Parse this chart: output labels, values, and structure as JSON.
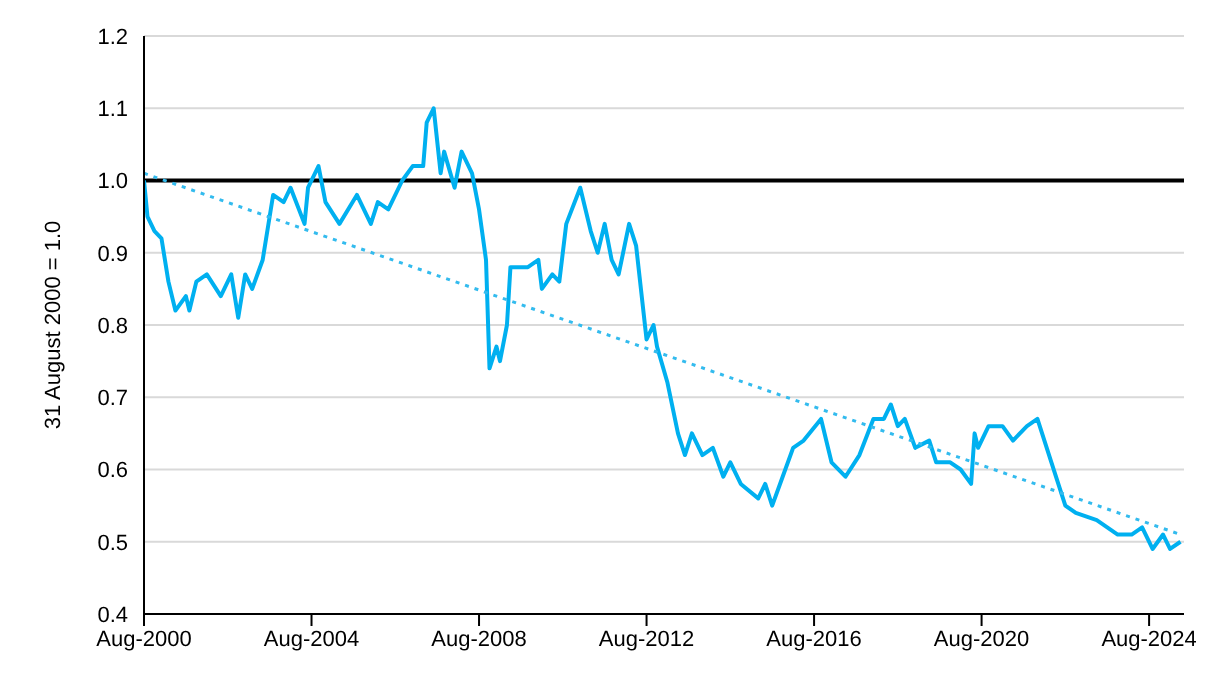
{
  "chart_data": {
    "type": "line",
    "ylabel": "31 August 2000 = 1.0",
    "xlim": [
      "2000-08",
      "2025-06"
    ],
    "xticks": [
      {
        "value": "2000-08",
        "label": "Aug-2000"
      },
      {
        "value": "2004-08",
        "label": "Aug-2004"
      },
      {
        "value": "2008-08",
        "label": "Aug-2008"
      },
      {
        "value": "2012-08",
        "label": "Aug-2012"
      },
      {
        "value": "2016-08",
        "label": "Aug-2016"
      },
      {
        "value": "2020-08",
        "label": "Aug-2020"
      },
      {
        "value": "2024-08",
        "label": "Aug-2024"
      }
    ],
    "ylim": [
      0.4,
      1.2
    ],
    "yticks": [
      0.4,
      0.5,
      0.6,
      0.7,
      0.8,
      0.9,
      {
        "value": 1,
        "label": "1.0"
      },
      1.1,
      1.2
    ],
    "grid": "y",
    "marker": "none",
    "ref_lines": [
      {
        "axis": "y",
        "value": 1,
        "color": "#000000"
      }
    ],
    "series": [
      {
        "color": "#00b0f0",
        "line_style": "solid",
        "x": [
          "2000-08",
          "2000-09",
          "2000-11",
          "2001-01",
          "2001-03",
          "2001-05",
          "2001-08",
          "2001-09",
          "2001-11",
          "2002-02",
          "2002-06",
          "2002-09",
          "2002-11",
          "2003-01",
          "2003-03",
          "2003-06",
          "2003-09",
          "2003-12",
          "2004-02",
          "2004-06",
          "2004-07",
          "2004-10",
          "2004-12",
          "2005-04",
          "2005-09",
          "2006-01",
          "2006-03",
          "2006-06",
          "2006-10",
          "2007-01",
          "2007-04",
          "2007-05",
          "2007-07",
          "2007-09",
          "2007-10",
          "2008-01",
          "2008-03",
          "2008-04",
          "2008-06",
          "2008-08",
          "2008-10",
          "2008-11",
          "2009-01",
          "2009-02",
          "2009-04",
          "2009-05",
          "2009-08",
          "2009-10",
          "2010-01",
          "2010-02",
          "2010-05",
          "2010-07",
          "2010-09",
          "2011-01",
          "2011-04",
          "2011-06",
          "2011-08",
          "2011-10",
          "2011-12",
          "2012-03",
          "2012-05",
          "2012-08",
          "2012-10",
          "2012-11",
          "2013-02",
          "2013-05",
          "2013-07",
          "2013-09",
          "2013-12",
          "2014-03",
          "2014-06",
          "2014-08",
          "2014-11",
          "2015-04",
          "2015-06",
          "2015-08",
          "2015-11",
          "2016-02",
          "2016-05",
          "2016-10",
          "2017-01",
          "2017-05",
          "2017-09",
          "2018-01",
          "2018-04",
          "2018-06",
          "2018-08",
          "2018-10",
          "2019-01",
          "2019-05",
          "2019-07",
          "2019-11",
          "2020-02",
          "2020-05",
          "2020-06",
          "2020-07",
          "2020-10",
          "2021-02",
          "2021-05",
          "2021-09",
          "2021-12",
          "2022-04",
          "2022-08",
          "2022-11",
          "2023-05",
          "2023-11",
          "2024-03",
          "2024-06",
          "2024-09",
          "2024-12",
          "2025-02",
          "2025-05"
        ],
        "values": [
          1.0,
          0.95,
          0.93,
          0.92,
          0.86,
          0.82,
          0.84,
          0.82,
          0.86,
          0.87,
          0.84,
          0.87,
          0.81,
          0.87,
          0.85,
          0.89,
          0.98,
          0.97,
          0.99,
          0.94,
          0.99,
          1.02,
          0.97,
          0.94,
          0.98,
          0.94,
          0.97,
          0.96,
          1.0,
          1.02,
          1.02,
          1.08,
          1.1,
          1.01,
          1.04,
          0.99,
          1.04,
          1.03,
          1.01,
          0.96,
          0.89,
          0.74,
          0.77,
          0.75,
          0.8,
          0.88,
          0.88,
          0.88,
          0.89,
          0.85,
          0.87,
          0.86,
          0.94,
          0.99,
          0.93,
          0.9,
          0.94,
          0.89,
          0.87,
          0.94,
          0.91,
          0.78,
          0.8,
          0.77,
          0.72,
          0.65,
          0.62,
          0.65,
          0.62,
          0.63,
          0.59,
          0.61,
          0.58,
          0.56,
          0.58,
          0.55,
          0.59,
          0.63,
          0.64,
          0.67,
          0.61,
          0.59,
          0.62,
          0.67,
          0.67,
          0.69,
          0.66,
          0.67,
          0.63,
          0.64,
          0.61,
          0.61,
          0.6,
          0.58,
          0.65,
          0.63,
          0.66,
          0.66,
          0.64,
          0.66,
          0.67,
          0.61,
          0.55,
          0.54,
          0.53,
          0.51,
          0.51,
          0.52,
          0.49,
          0.51,
          0.49,
          0.5
        ]
      },
      {
        "color": "#33bbee",
        "line_style": "dotted",
        "x": [
          "2000-08",
          "2025-05"
        ],
        "values": [
          1.01,
          0.51
        ]
      }
    ]
  }
}
